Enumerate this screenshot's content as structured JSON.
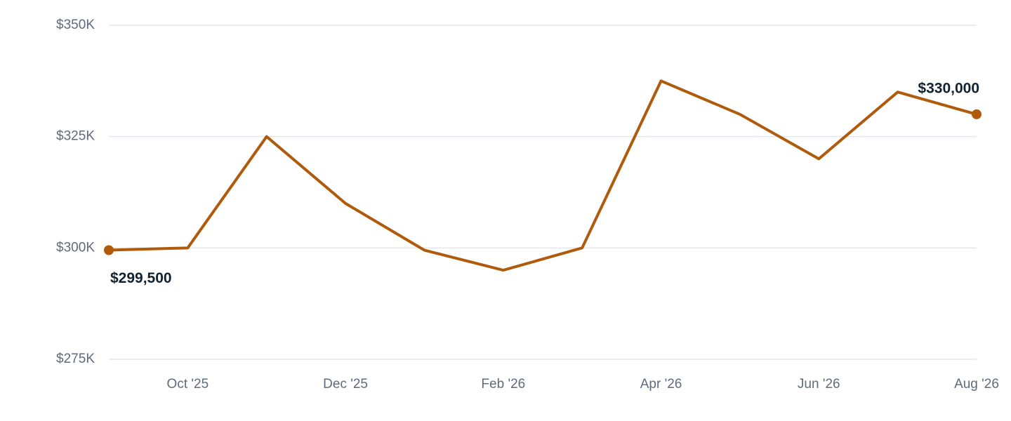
{
  "chart_data": {
    "type": "line",
    "categories": [
      null,
      "Oct '25",
      null,
      "Dec '25",
      null,
      "Feb '26",
      null,
      "Apr '26",
      null,
      "Jun '26",
      null,
      "Aug '26"
    ],
    "series": [
      {
        "color": "#b05a0b",
        "values": [
          299500,
          300000,
          325000,
          310000,
          299500,
          295000,
          300000,
          337500,
          330000,
          320000,
          335000,
          330000
        ],
        "value_labels": [
          "$299,500",
          null,
          null,
          null,
          null,
          null,
          null,
          null,
          null,
          null,
          null,
          "$330,000"
        ]
      }
    ],
    "ylim": [
      275000,
      350000
    ],
    "yticks": [
      {
        "value": 275000,
        "label": "$275K"
      },
      {
        "value": 300000,
        "label": "$300K"
      },
      {
        "value": 325000,
        "label": "$325K"
      },
      {
        "value": 350000,
        "label": "$350K"
      }
    ],
    "grid": true
  }
}
